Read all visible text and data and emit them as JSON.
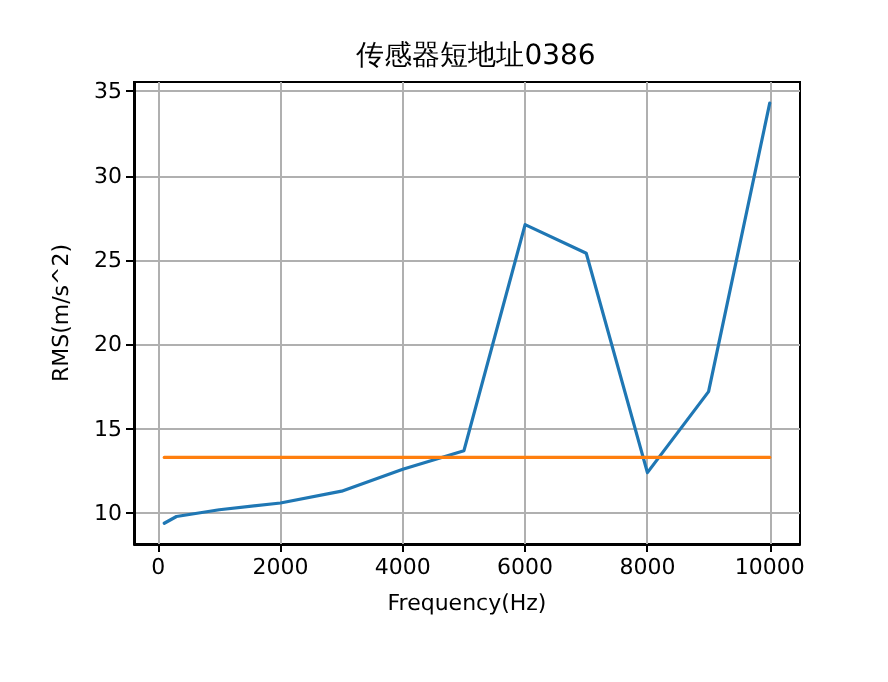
{
  "chart_data": {
    "type": "line",
    "title": "传感器短地址0386",
    "xlabel": "Frequency(Hz)",
    "ylabel": "RMS(m/s^2)",
    "x": [
      100,
      300,
      1000,
      2000,
      3000,
      4000,
      5000,
      6000,
      7000,
      8000,
      9000,
      10000
    ],
    "series": [
      {
        "color": "#1f77b4",
        "values": [
          9.4,
          9.8,
          10.2,
          10.6,
          11.3,
          12.6,
          13.7,
          27.1,
          25.4,
          12.4,
          17.2,
          34.3
        ]
      },
      {
        "color": "#ff7f0e",
        "x": [
          100,
          10000
        ],
        "values": [
          13.3,
          13.3
        ]
      }
    ],
    "xlim": [
      -395,
      10495
    ],
    "xticks": [
      0,
      2000,
      4000,
      6000,
      8000,
      10000
    ],
    "ylim": [
      8.17,
      35.55
    ],
    "yticks": [
      10,
      15,
      20,
      25,
      30,
      35
    ],
    "grid": true,
    "marker": "none",
    "line_style": "solid"
  }
}
